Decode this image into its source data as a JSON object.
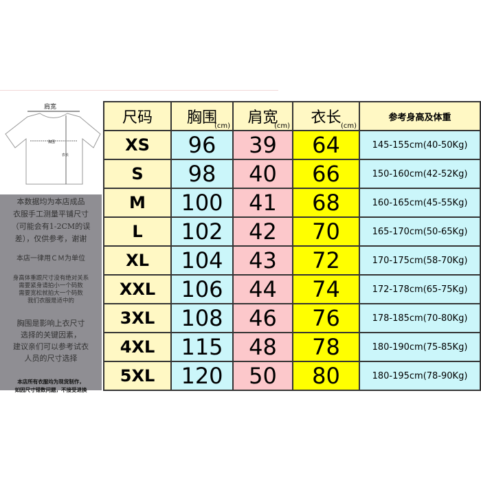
{
  "diagram": {
    "shoulder": "肩宽",
    "chest": "胸围",
    "length": "衣长"
  },
  "notes": {
    "n1": [
      "本数据均为本店成品",
      "衣服手工测量平铺尺寸",
      "（可能会有1-2CM的误",
      "差），仅供参考，谢谢"
    ],
    "n2": "本店一律用ＣＭ为单位",
    "n3": [
      "身高体重跟尺寸没有绝对关系",
      "需要紧身请拍小一个码数",
      "需要宽松就拍大一个码数",
      "我们衣服是适中的"
    ],
    "n4": [
      "胸围是影响上衣尺寸",
      "选择的关键因素，",
      "建议亲们可以参考试衣",
      "人员的尺寸选择"
    ],
    "n5": [
      "本店所有衣服均为现货制作，",
      "如因尺寸错数问题，不接受退换"
    ]
  },
  "headers": {
    "size": "尺码",
    "chest": "胸围",
    "shoulder": "肩宽",
    "length": "衣长",
    "unit": "(cm)",
    "ref": "参考身高及体重"
  },
  "rows": [
    {
      "size": "XS",
      "chest": "96",
      "shoulder": "39",
      "length": "64",
      "ref": "145-155cm(40-50Kg)"
    },
    {
      "size": "S",
      "chest": "98",
      "shoulder": "40",
      "length": "66",
      "ref": "150-160cm(42-52Kg)"
    },
    {
      "size": "M",
      "chest": "100",
      "shoulder": "41",
      "length": "68",
      "ref": "160-165cm(45-55Kg)"
    },
    {
      "size": "L",
      "chest": "102",
      "shoulder": "42",
      "length": "70",
      "ref": "165-170cm(50-65Kg)"
    },
    {
      "size": "XL",
      "chest": "104",
      "shoulder": "43",
      "length": "72",
      "ref": "170-175cm(58-70Kg)"
    },
    {
      "size": "XXL",
      "chest": "106",
      "shoulder": "44",
      "length": "74",
      "ref": "172-178cm(65-75Kg)"
    },
    {
      "size": "3XL",
      "chest": "108",
      "shoulder": "46",
      "length": "76",
      "ref": "178-185cm(70-80Kg)"
    },
    {
      "size": "4XL",
      "chest": "115",
      "shoulder": "48",
      "length": "78",
      "ref": "180-190cm(75-85Kg)"
    },
    {
      "size": "5XL",
      "chest": "120",
      "shoulder": "50",
      "length": "80",
      "ref": "180-195cm(78-90Kg)"
    }
  ]
}
